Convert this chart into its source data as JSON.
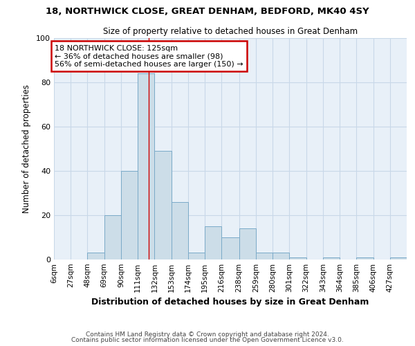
{
  "title_line1": "18, NORTHWICK CLOSE, GREAT DENHAM, BEDFORD, MK40 4SY",
  "title_line2": "Size of property relative to detached houses in Great Denham",
  "xlabel": "Distribution of detached houses by size in Great Denham",
  "ylabel": "Number of detached properties",
  "bin_edges": [
    6,
    27,
    48,
    69,
    90,
    111,
    132,
    153,
    174,
    195,
    216,
    238,
    259,
    280,
    301,
    322,
    343,
    364,
    385,
    406,
    427,
    448
  ],
  "bar_heights": [
    0,
    0,
    3,
    20,
    40,
    84,
    49,
    26,
    3,
    15,
    10,
    14,
    3,
    3,
    1,
    0,
    1,
    0,
    1,
    0,
    1
  ],
  "bar_color": "#ccdde8",
  "bar_edgecolor": "#7aaac8",
  "red_line_x": 125,
  "annotation_line1": "18 NORTHWICK CLOSE: 125sqm",
  "annotation_line2": "← 36% of detached houses are smaller (98)",
  "annotation_line3": "56% of semi-detached houses are larger (150) →",
  "annotation_box_color": "#cc0000",
  "ylim": [
    0,
    100
  ],
  "yticks": [
    0,
    20,
    40,
    60,
    80,
    100
  ],
  "grid_color": "#c8d8e8",
  "bg_color": "#e8f0f8",
  "plot_bg_color": "#e8f0f8",
  "footer_text1": "Contains HM Land Registry data © Crown copyright and database right 2024.",
  "footer_text2": "Contains public sector information licensed under the Open Government Licence v3.0.",
  "tick_labels": [
    "6sqm",
    "27sqm",
    "48sqm",
    "69sqm",
    "90sqm",
    "111sqm",
    "132sqm",
    "153sqm",
    "174sqm",
    "195sqm",
    "216sqm",
    "238sqm",
    "259sqm",
    "280sqm",
    "301sqm",
    "322sqm",
    "343sqm",
    "364sqm",
    "385sqm",
    "406sqm",
    "427sqm"
  ]
}
